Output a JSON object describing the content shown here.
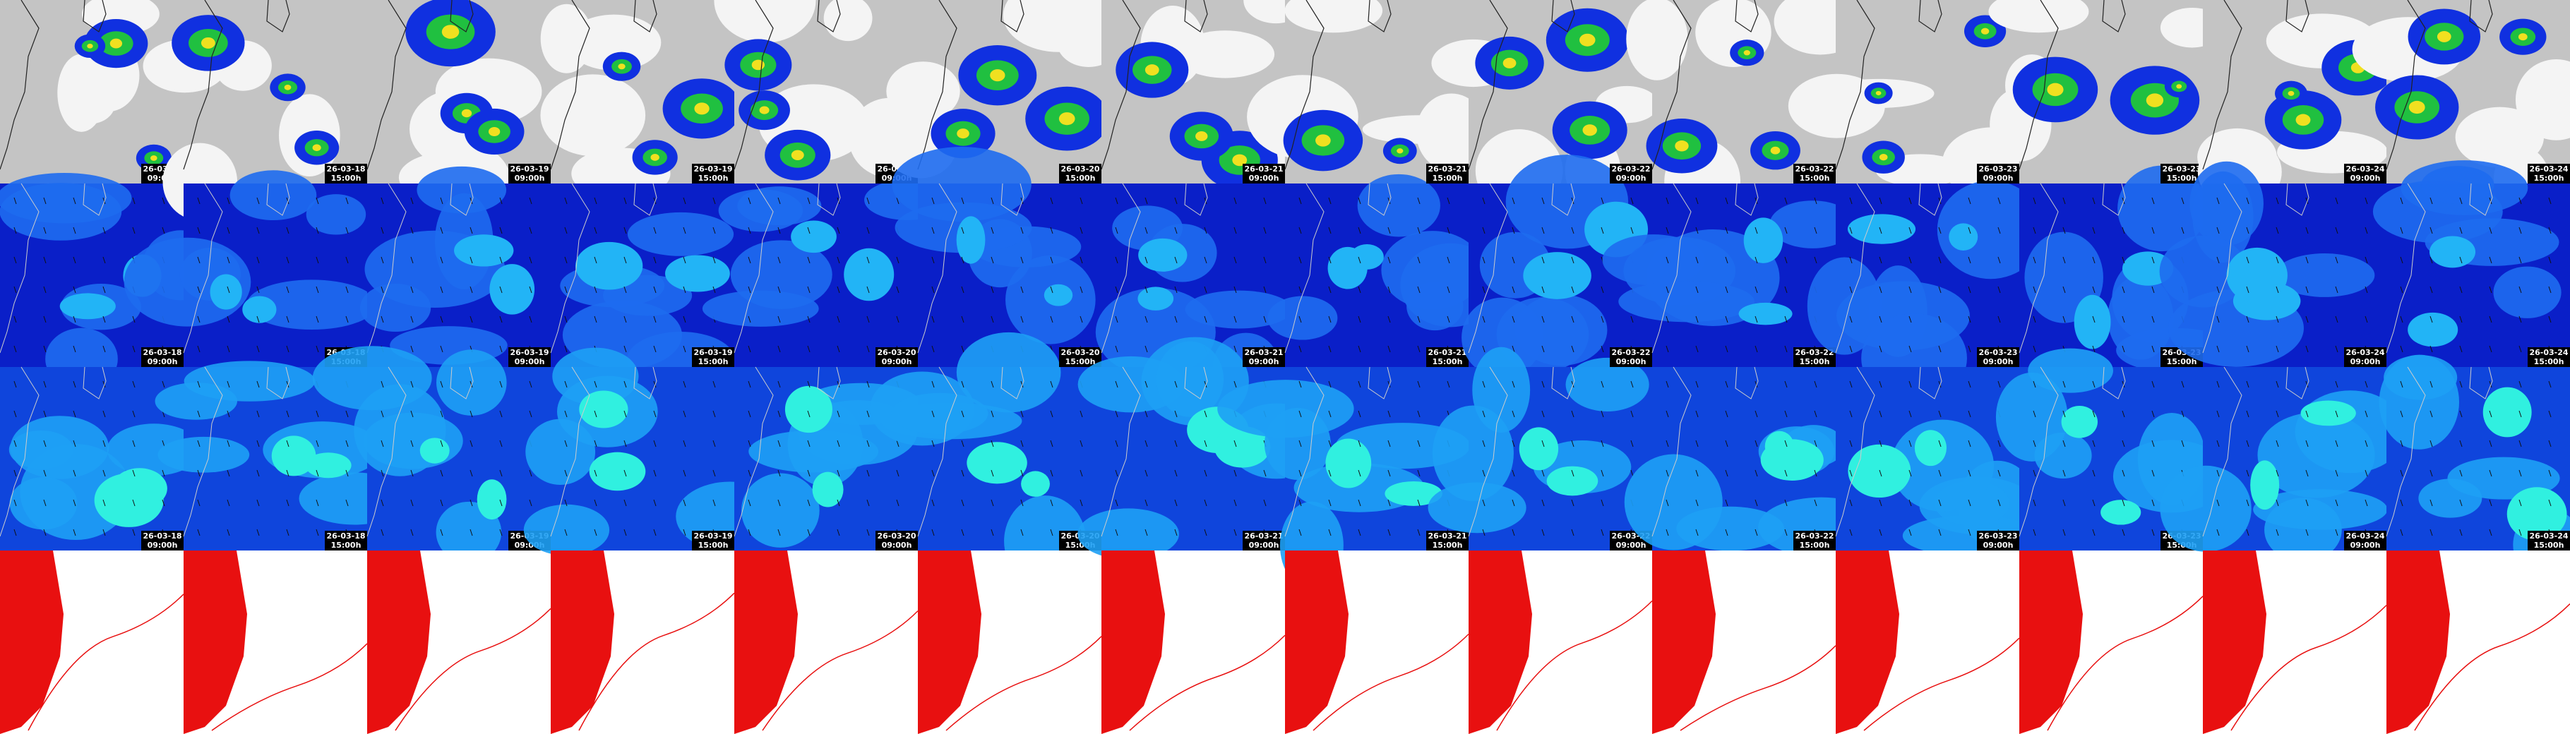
{
  "columns": [
    {
      "date": "26-03-18",
      "time": "09:00h"
    },
    {
      "date": "26-03-18",
      "time": "15:00h"
    },
    {
      "date": "26-03-19",
      "time": "09:00h"
    },
    {
      "date": "26-03-19",
      "time": "15:00h"
    },
    {
      "date": "26-03-20",
      "time": "09:00h"
    },
    {
      "date": "26-03-20",
      "time": "15:00h"
    },
    {
      "date": "26-03-21",
      "time": "09:00h"
    },
    {
      "date": "26-03-21",
      "time": "15:00h"
    },
    {
      "date": "26-03-22",
      "time": "09:00h"
    },
    {
      "date": "26-03-22",
      "time": "15:00h"
    },
    {
      "date": "26-03-23",
      "time": "09:00h"
    },
    {
      "date": "26-03-23",
      "time": "15:00h"
    },
    {
      "date": "26-03-24",
      "time": "09:00h"
    },
    {
      "date": "26-03-24",
      "time": "15:00h"
    }
  ]
}
